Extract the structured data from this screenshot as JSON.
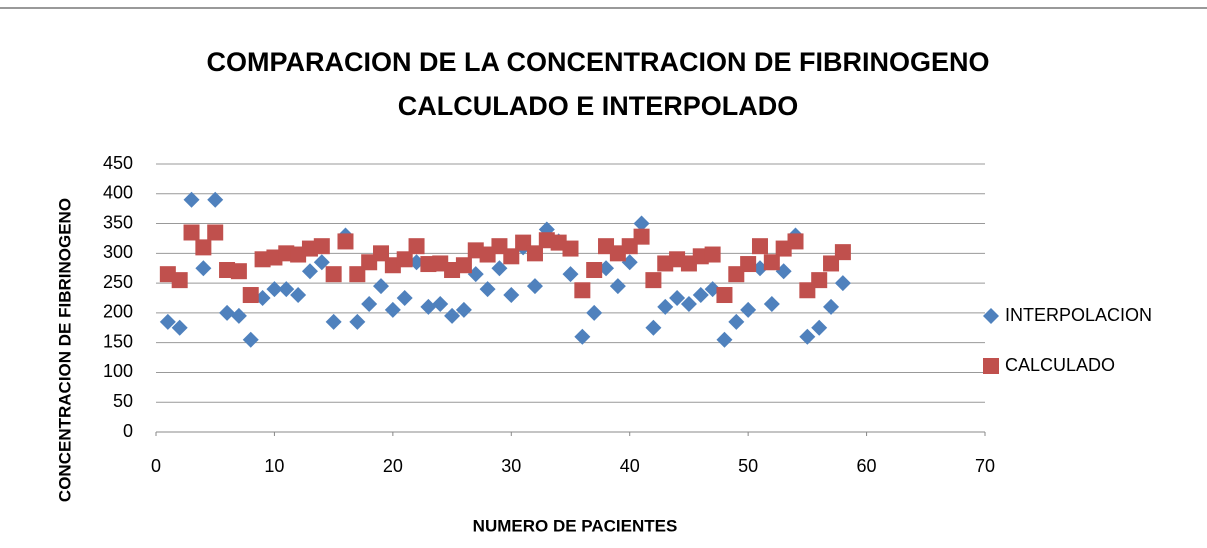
{
  "chart_data": {
    "type": "scatter",
    "title": "COMPARACION DE LA CONCENTRACION DE FIBRINOGENO CALCULADO E INTERPOLADO",
    "xlabel": "NUMERO DE PACIENTES",
    "ylabel": "CONCENTRACION DE FIBRINOGENO",
    "x": [
      1,
      2,
      3,
      4,
      5,
      6,
      7,
      8,
      9,
      10,
      11,
      12,
      13,
      14,
      15,
      16,
      17,
      18,
      19,
      20,
      21,
      22,
      23,
      24,
      25,
      26,
      27,
      28,
      29,
      30,
      31,
      32,
      33,
      34,
      35,
      36,
      37,
      38,
      39,
      40,
      41,
      42,
      43,
      44,
      45,
      46,
      47,
      48,
      49,
      50,
      51,
      52,
      53,
      54,
      55,
      56,
      57,
      58
    ],
    "series": [
      {
        "name": "INTERPOLACION",
        "color": "#4f81bd",
        "marker": "diamond",
        "values": [
          185,
          175,
          390,
          275,
          390,
          200,
          195,
          155,
          225,
          240,
          240,
          230,
          270,
          285,
          185,
          330,
          185,
          215,
          245,
          205,
          225,
          285,
          210,
          215,
          195,
          205,
          265,
          240,
          275,
          230,
          310,
          245,
          340,
          320,
          265,
          160,
          200,
          275,
          245,
          285,
          350,
          175,
          210,
          225,
          215,
          230,
          240,
          155,
          185,
          205,
          275,
          215,
          270,
          330,
          160,
          175,
          210,
          250
        ]
      },
      {
        "name": "CALCULADO",
        "color": "#c0504d",
        "marker": "square",
        "values": [
          265,
          255,
          335,
          310,
          335,
          272,
          270,
          230,
          290,
          293,
          300,
          298,
          308,
          312,
          265,
          320,
          265,
          285,
          300,
          280,
          290,
          312,
          282,
          283,
          272,
          280,
          305,
          298,
          312,
          295,
          318,
          300,
          322,
          318,
          308,
          238,
          272,
          312,
          300,
          312,
          328,
          255,
          283,
          290,
          283,
          295,
          298,
          230,
          265,
          282,
          312,
          285,
          308,
          320,
          238,
          255,
          283,
          302
        ]
      }
    ],
    "xlim": [
      0,
      70
    ],
    "xticks": [
      0,
      10,
      20,
      30,
      40,
      50,
      60,
      70
    ],
    "ylim": [
      0,
      450
    ],
    "yticks": [
      0,
      50,
      100,
      150,
      200,
      250,
      300,
      350,
      400,
      450
    ],
    "grid": true,
    "legend": "right"
  }
}
